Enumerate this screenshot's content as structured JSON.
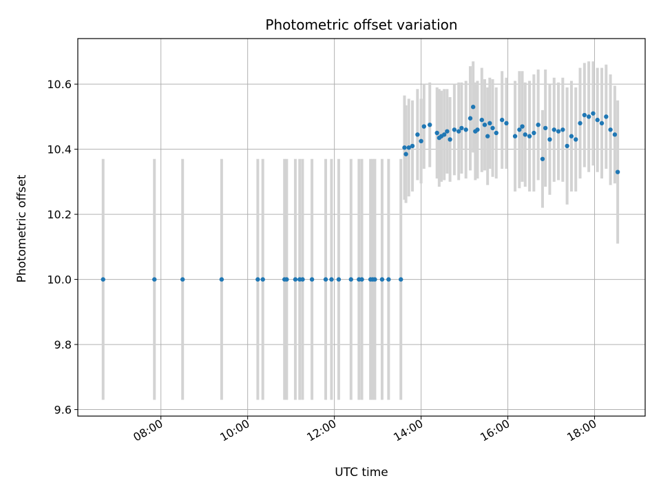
{
  "chart_data": {
    "type": "scatter",
    "title": "Photometric offset variation",
    "xlabel": "UTC time",
    "ylabel": "Photometric offset",
    "x_unit": "hours UTC",
    "xlim": [
      "06:05",
      "19:10"
    ],
    "ylim": [
      9.58,
      10.74
    ],
    "x_ticks": [
      "08:00",
      "10:00",
      "12:00",
      "14:00",
      "16:00",
      "18:00"
    ],
    "y_ticks": [
      "9.6",
      "9.8",
      "10.0",
      "10.2",
      "10.4",
      "10.6"
    ],
    "grid": true,
    "colors": {
      "point": "#1f77b4",
      "errorbar": "#d3d3d3",
      "grid": "#b0b0b0",
      "axis": "#000000"
    },
    "series": [
      {
        "x": [
          "06:40",
          "07:51",
          "08:30",
          "09:24",
          "10:14",
          "10:21",
          "10:51",
          "10:54",
          "11:06",
          "11:12",
          "11:16",
          "11:29",
          "11:48",
          "11:56",
          "12:06",
          "12:23",
          "12:34",
          "12:38",
          "12:50",
          "12:53",
          "12:56",
          "13:06",
          "13:15",
          "13:32",
          "13:37",
          "13:39",
          "13:43",
          "13:48",
          "13:55",
          "14:00",
          "14:04",
          "14:12",
          "14:22",
          "14:25",
          "14:28",
          "14:32",
          "14:36",
          "14:40",
          "14:46",
          "14:52",
          "14:56",
          "15:02",
          "15:08",
          "15:12",
          "15:15",
          "15:18",
          "15:24",
          "15:28",
          "15:32",
          "15:35",
          "15:39",
          "15:44",
          "15:52",
          "15:58",
          "16:10",
          "16:16",
          "16:20",
          "16:24",
          "16:30",
          "16:36",
          "16:42",
          "16:48",
          "16:52",
          "16:58",
          "17:04",
          "17:10",
          "17:16",
          "17:22",
          "17:28",
          "17:34",
          "17:40",
          "17:46",
          "17:52",
          "17:58",
          "18:04",
          "18:10",
          "18:16",
          "18:22",
          "18:28",
          "18:32"
        ],
        "y": [
          10.0,
          10.0,
          10.0,
          10.0,
          10.0,
          10.0,
          10.0,
          10.0,
          10.0,
          10.0,
          10.0,
          10.0,
          10.0,
          10.0,
          10.0,
          10.0,
          10.0,
          10.0,
          10.0,
          10.0,
          10.0,
          10.0,
          10.0,
          10.0,
          10.405,
          10.385,
          10.405,
          10.41,
          10.445,
          10.425,
          10.47,
          10.475,
          10.45,
          10.435,
          10.44,
          10.445,
          10.455,
          10.43,
          10.46,
          10.455,
          10.465,
          10.46,
          10.495,
          10.53,
          10.455,
          10.46,
          10.49,
          10.475,
          10.44,
          10.48,
          10.465,
          10.45,
          10.49,
          10.48,
          10.44,
          10.46,
          10.47,
          10.445,
          10.44,
          10.45,
          10.475,
          10.37,
          10.465,
          10.43,
          10.46,
          10.455,
          10.46,
          10.41,
          10.44,
          10.43,
          10.48,
          10.505,
          10.5,
          10.51,
          10.49,
          10.48,
          10.5,
          10.46,
          10.445,
          10.33
        ],
        "yerr": [
          0.37,
          0.37,
          0.37,
          0.37,
          0.37,
          0.37,
          0.37,
          0.37,
          0.37,
          0.37,
          0.37,
          0.37,
          0.37,
          0.37,
          0.37,
          0.37,
          0.37,
          0.37,
          0.37,
          0.37,
          0.37,
          0.37,
          0.37,
          0.37,
          0.16,
          0.15,
          0.15,
          0.14,
          0.14,
          0.13,
          0.13,
          0.13,
          0.14,
          0.15,
          0.14,
          0.14,
          0.13,
          0.13,
          0.14,
          0.15,
          0.14,
          0.15,
          0.16,
          0.14,
          0.15,
          0.15,
          0.16,
          0.14,
          0.15,
          0.14,
          0.15,
          0.14,
          0.15,
          0.14,
          0.17,
          0.18,
          0.17,
          0.16,
          0.17,
          0.18,
          0.17,
          0.15,
          0.18,
          0.17,
          0.16,
          0.15,
          0.16,
          0.18,
          0.17,
          0.16,
          0.17,
          0.16,
          0.17,
          0.16,
          0.16,
          0.17,
          0.16,
          0.17,
          0.15,
          0.22
        ]
      }
    ]
  }
}
